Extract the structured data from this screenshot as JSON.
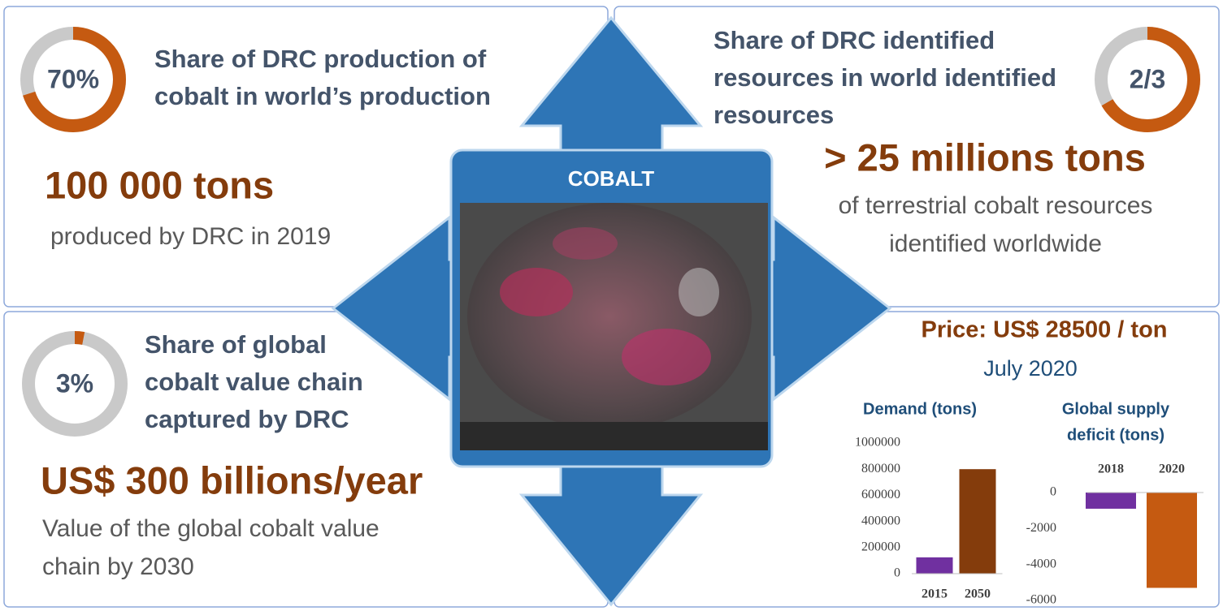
{
  "center_label": "COBALT",
  "panels": [
    {
      "ring": {
        "value": 70,
        "label": "70%"
      },
      "heading": [
        "Share of DRC production of",
        "cobalt in world’s production"
      ],
      "figure": "100 000 tons",
      "caption": [
        "produced by DRC in 2019"
      ]
    },
    {
      "ring": {
        "value": 66.67,
        "label": "2/3"
      },
      "heading": [
        "Share of DRC identified",
        "resources in world identified",
        "resources"
      ],
      "figure": "> 25 millions tons",
      "caption": [
        "of terrestrial cobalt resources",
        "identified worldwide"
      ]
    },
    {
      "ring": {
        "value": 3,
        "label": "3%"
      },
      "heading": [
        "Share of global",
        "cobalt value chain",
        "captured by DRC"
      ],
      "figure": "US$ 300 billions/year",
      "caption": [
        "Value of the global cobalt value",
        "chain by 2030"
      ]
    }
  ],
  "price": "Price: US$ 28500 / ton",
  "price_date": "July 2020",
  "chart_data": [
    {
      "type": "bar",
      "title": [
        "Demand (tons)"
      ],
      "categories": [
        "2015",
        "2050"
      ],
      "values": [
        125000,
        800000
      ],
      "colors": [
        "#7030a0",
        "#843c0c"
      ],
      "ylim": [
        0,
        1000000
      ],
      "yticks": [
        0,
        200000,
        400000,
        600000,
        800000,
        1000000
      ]
    },
    {
      "type": "bar",
      "title": [
        "Global supply",
        "deficit (tons)"
      ],
      "categories": [
        "2018",
        "2020"
      ],
      "values": [
        -900,
        -5300
      ],
      "colors": [
        "#7030a0",
        "#c55a11"
      ],
      "ylim": [
        -6000,
        0
      ],
      "yticks": [
        0,
        -2000,
        -4000,
        -6000
      ]
    }
  ]
}
